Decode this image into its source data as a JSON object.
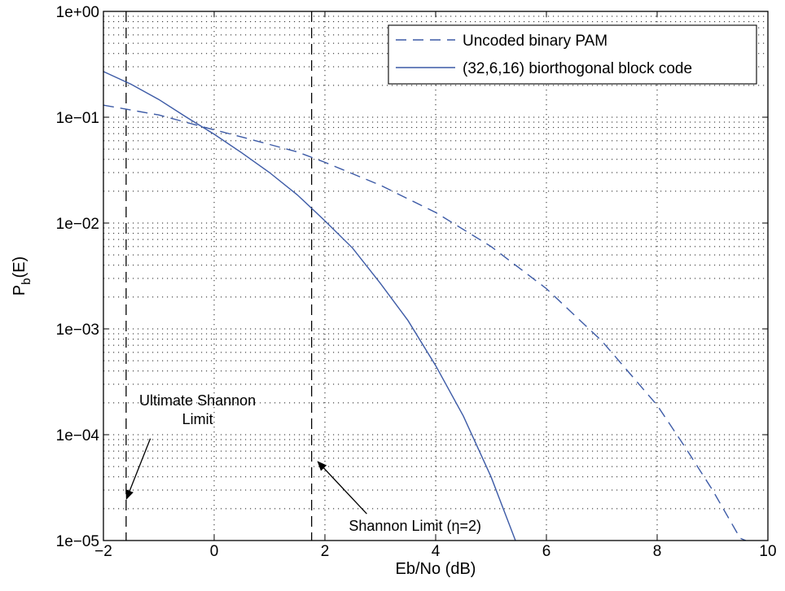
{
  "chart_data": {
    "type": "line",
    "xlabel": "Eb/No (dB)",
    "ylabel": "P",
    "ylabel_sub": "b",
    "ylabel_suffix": "(E)",
    "xlim": [
      -2,
      10
    ],
    "ylim": [
      1e-05,
      1
    ],
    "yscale": "log",
    "grid": true,
    "legend_position": "top-right",
    "x_ticks": [
      -2,
      0,
      2,
      4,
      6,
      8,
      10
    ],
    "x_tick_labels": [
      "−2",
      "0",
      "2",
      "4",
      "6",
      "8",
      "10"
    ],
    "y_ticks": [
      1e-05,
      0.0001,
      0.001,
      0.01,
      0.1,
      1
    ],
    "y_tick_labels": [
      "1e−05",
      "1e−04",
      "1e−03",
      "1e−02",
      "1e−01",
      "1e+00"
    ],
    "series": [
      {
        "name": "Uncoded binary PAM",
        "style": "dashed",
        "color": "#3c5aa6",
        "x": [
          -2,
          -1,
          -0.2,
          0.5,
          1.5,
          2,
          3,
          4,
          5,
          6,
          7,
          8,
          8.5,
          9,
          9.5,
          9.6
        ],
        "y": [
          0.13,
          0.105,
          0.081,
          0.065,
          0.047,
          0.0375,
          0.0228,
          0.0126,
          0.006,
          0.0024,
          0.00077,
          0.00019,
          7.7e-05,
          3e-05,
          1.05e-05,
          1e-05
        ]
      },
      {
        "name": "(32,6,16) biorthogonal block code",
        "style": "solid",
        "color": "#3c5aa6",
        "x": [
          -2,
          -1.5,
          -1,
          -0.5,
          0,
          0.5,
          1,
          1.5,
          2,
          2.5,
          3,
          3.5,
          4,
          4.5,
          5,
          5.5,
          5.8
        ],
        "y": [
          0.27,
          0.205,
          0.147,
          0.1,
          0.069,
          0.046,
          0.03,
          0.0185,
          0.0105,
          0.0058,
          0.0027,
          0.0012,
          0.00045,
          0.00015,
          4e-05,
          8.3e-06,
          1e-05
        ]
      }
    ],
    "vlines": [
      {
        "x": -1.59,
        "style": "dashed",
        "color": "#000000"
      },
      {
        "x": 1.76,
        "style": "dashed",
        "color": "#000000"
      }
    ],
    "annotations": [
      {
        "lines": [
          "Ultimate Shannon",
          "Limit"
        ],
        "x": -0.3,
        "y": 0.00019,
        "arrow_to": {
          "x": -1.58,
          "y": 2.5e-05
        }
      },
      {
        "lines": [
          "Shannon Limit (η=2)"
        ],
        "x": 1.8,
        "y": 1.3e-05,
        "arrow_to": {
          "x": 1.88,
          "y": 5.5e-05
        }
      }
    ]
  }
}
